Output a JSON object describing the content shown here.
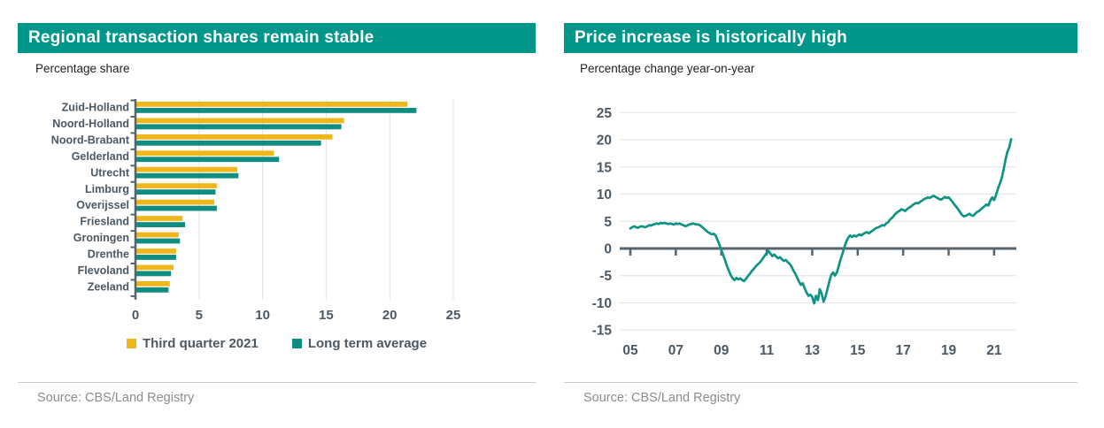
{
  "left_panel": {
    "title": "Regional transaction shares remain stable",
    "subtitle": "Percentage share",
    "source": "Source: CBS/Land Registry"
  },
  "right_panel": {
    "title": "Price increase is historically high",
    "subtitle": "Percentage change year-on-year",
    "source": "Source: CBS/Land Registry"
  },
  "colors": {
    "header_bg": "#00968a",
    "yellow": "#f0b71d",
    "teal": "#0f8d80",
    "line": "#109384",
    "axis_text": "#4a5964",
    "axis_line": "#566470",
    "grid": "#e4e6e8"
  },
  "chart_data": [
    {
      "type": "bar",
      "orientation": "horizontal",
      "title": "Regional transaction shares remain stable",
      "ylabel": "Percentage share",
      "xlabel": "",
      "xlim": [
        0,
        25
      ],
      "xticks": [
        0,
        5,
        10,
        15,
        20,
        25
      ],
      "grid": "vertical",
      "legend_position": "bottom",
      "categories": [
        "Zuid-Holland",
        "Noord-Holland",
        "Noord-Brabant",
        "Gelderland",
        "Utrecht",
        "Limburg",
        "Overijssel",
        "Friesland",
        "Groningen",
        "Drenthe",
        "Flevoland",
        "Zeeland"
      ],
      "series": [
        {
          "name": "Third quarter 2021",
          "color": "#f0b71d",
          "values": [
            21.4,
            16.4,
            15.5,
            10.9,
            8.0,
            6.4,
            6.2,
            3.7,
            3.4,
            3.2,
            3.0,
            2.7
          ]
        },
        {
          "name": "Long term average",
          "color": "#0f8d80",
          "values": [
            22.1,
            16.2,
            14.6,
            11.3,
            8.1,
            6.3,
            6.4,
            3.9,
            3.5,
            3.2,
            2.8,
            2.6
          ]
        }
      ]
    },
    {
      "type": "line",
      "title": "Price increase is historically high",
      "ylabel": "Percentage change year-on-year",
      "xlabel": "",
      "ylim": [
        -15,
        25
      ],
      "yticks": [
        25,
        20,
        15,
        10,
        5,
        0,
        -5,
        -10,
        -15
      ],
      "xticks": [
        "05",
        "07",
        "09",
        "11",
        "13",
        "15",
        "17",
        "19",
        "21"
      ],
      "x_start": "2005-01",
      "x_end": "2021-10",
      "x_frequency": "monthly",
      "grid": "horizontal",
      "zero_line": true,
      "series": [
        {
          "name": "Percentage change year-on-year",
          "color": "#109384",
          "values": [
            3.7,
            3.9,
            4.1,
            3.9,
            3.8,
            4.0,
            4.1,
            4.0,
            3.9,
            4.1,
            4.3,
            4.2,
            4.4,
            4.5,
            4.6,
            4.5,
            4.7,
            4.6,
            4.7,
            4.6,
            4.5,
            4.6,
            4.5,
            4.4,
            4.6,
            4.5,
            4.6,
            4.4,
            4.3,
            4.1,
            4.2,
            4.4,
            4.5,
            4.6,
            4.5,
            4.4,
            4.4,
            4.2,
            3.9,
            3.6,
            3.3,
            3.0,
            2.8,
            2.6,
            2.7,
            2.4,
            1.6,
            0.7,
            -0.3,
            -1.2,
            -2.2,
            -3.2,
            -4.1,
            -4.9,
            -5.5,
            -5.8,
            -5.4,
            -5.7,
            -5.5,
            -5.8,
            -6.0,
            -5.6,
            -5.1,
            -4.7,
            -4.2,
            -3.8,
            -3.4,
            -3.0,
            -2.7,
            -2.3,
            -1.8,
            -1.3,
            -0.8,
            -0.5,
            -1.0,
            -1.4,
            -1.1,
            -1.5,
            -1.8,
            -1.6,
            -2.0,
            -2.3,
            -2.1,
            -2.5,
            -2.8,
            -3.3,
            -4.0,
            -4.6,
            -5.3,
            -6.1,
            -6.7,
            -6.4,
            -7.3,
            -8.1,
            -8.7,
            -8.5,
            -8.9,
            -10.1,
            -8.7,
            -9.5,
            -7.5,
            -8.3,
            -9.8,
            -8.9,
            -7.5,
            -6.1,
            -4.9,
            -4.4,
            -5.0,
            -4.4,
            -3.2,
            -2.0,
            -0.9,
            0.3,
            1.3,
            2.0,
            2.4,
            2.1,
            2.4,
            2.2,
            2.4,
            2.6,
            2.4,
            2.7,
            2.9,
            3.0,
            2.8,
            3.1,
            3.3,
            3.6,
            3.8,
            3.9,
            4.1,
            4.3,
            4.2,
            4.6,
            4.8,
            5.3,
            5.6,
            6.0,
            6.4,
            6.7,
            6.9,
            7.2,
            7.1,
            6.9,
            7.2,
            7.5,
            7.7,
            8.0,
            8.2,
            8.4,
            8.3,
            8.6,
            8.8,
            9.1,
            9.2,
            9.4,
            9.3,
            9.5,
            9.7,
            9.5,
            9.3,
            9.1,
            9.0,
            9.2,
            9.5,
            9.3,
            9.4,
            9.0,
            8.6,
            8.1,
            7.7,
            7.2,
            6.7,
            6.2,
            5.9,
            6.0,
            6.2,
            6.4,
            6.1,
            6.0,
            6.4,
            6.7,
            6.9,
            7.2,
            7.5,
            7.8,
            8.1,
            7.9,
            8.8,
            9.4,
            8.9,
            9.8,
            11.0,
            11.9,
            12.9,
            14.5,
            16.3,
            17.8,
            18.6,
            20.1
          ]
        }
      ]
    }
  ]
}
